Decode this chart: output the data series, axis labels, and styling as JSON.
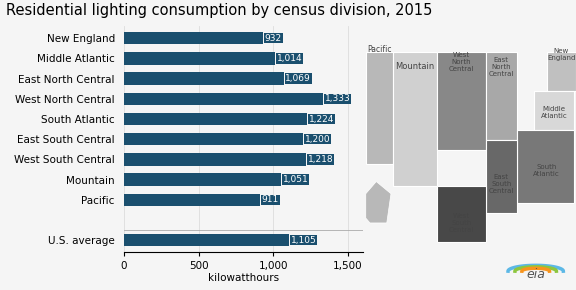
{
  "title": "Residential lighting consumption by census division, 2015",
  "categories": [
    "New England",
    "Middle Atlantic",
    "East North Central",
    "West North Central",
    "South Atlantic",
    "East South Central",
    "West South Central",
    "Mountain",
    "Pacific",
    "",
    "U.S. average"
  ],
  "values": [
    932,
    1014,
    1069,
    1333,
    1224,
    1200,
    1218,
    1051,
    911,
    null,
    1105
  ],
  "bar_color": "#1a4f6e",
  "xlabel": "kilowatthours",
  "xticks": [
    0,
    500,
    1000,
    1500
  ],
  "xlim": [
    0,
    1600
  ],
  "title_fontsize": 10.5,
  "label_fontsize": 7.5,
  "value_fontsize": 6.5,
  "tick_fontsize": 7.5,
  "background_color": "#f5f5f5",
  "division_colors": {
    "Pacific": "#b8b8b8",
    "Mountain": "#d0d0d0",
    "West North Central": "#888888",
    "East North Central": "#a8a8a8",
    "West South Central": "#484848",
    "East South Central": "#686868",
    "South Atlantic": "#787878",
    "New England": "#c0c0c0",
    "Middle Atlantic": "#d8d8d8"
  }
}
